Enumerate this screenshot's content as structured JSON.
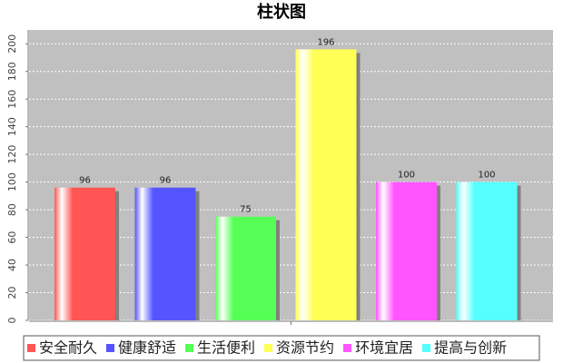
{
  "chart_data": {
    "type": "bar",
    "title": "柱状图",
    "categories": [
      null
    ],
    "series": [
      {
        "name": "安全耐久",
        "color": "#ff5555",
        "values": [
          96
        ]
      },
      {
        "name": "健康舒适",
        "color": "#5555ff",
        "values": [
          96
        ]
      },
      {
        "name": "生活便利",
        "color": "#55ff55",
        "values": [
          75
        ]
      },
      {
        "name": "资源节约",
        "color": "#ffff55",
        "values": [
          196
        ]
      },
      {
        "name": "环境宜居",
        "color": "#ff55ff",
        "values": [
          100
        ]
      },
      {
        "name": "提高与创新",
        "color": "#55ffff",
        "values": [
          100
        ]
      }
    ],
    "ylim": [
      0,
      210
    ],
    "yticks": [
      0,
      20,
      40,
      60,
      80,
      100,
      120,
      140,
      160,
      180,
      200
    ],
    "grid": true
  }
}
